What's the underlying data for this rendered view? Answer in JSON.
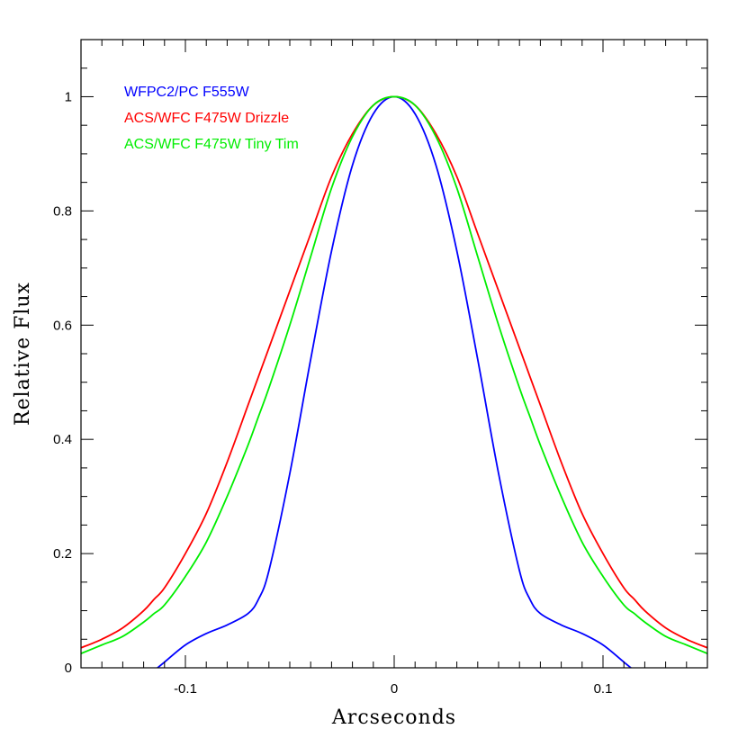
{
  "chart_data": {
    "type": "line",
    "title": "",
    "xlabel": "Arcseconds",
    "ylabel": "Relative Flux",
    "xlim": [
      -0.15,
      0.15
    ],
    "ylim": [
      0,
      1.1
    ],
    "x_ticks": [
      {
        "value": -0.1,
        "label": "-0.1"
      },
      {
        "value": 0,
        "label": "0"
      },
      {
        "value": 0.1,
        "label": "0.1"
      }
    ],
    "y_ticks": [
      {
        "value": 0,
        "label": "0"
      },
      {
        "value": 0.2,
        "label": "0.2"
      },
      {
        "value": 0.4,
        "label": "0.4"
      },
      {
        "value": 0.6,
        "label": "0.6"
      },
      {
        "value": 0.8,
        "label": "0.8"
      },
      {
        "value": 1,
        "label": "1"
      }
    ],
    "x_minor_step": 0.01,
    "y_minor_step": 0.05,
    "grid": false,
    "legend": "top-left",
    "x": [
      -0.15,
      -0.14,
      -0.13,
      -0.12,
      -0.115,
      -0.11,
      -0.1,
      -0.09,
      -0.08,
      -0.07,
      -0.065,
      -0.06,
      -0.05,
      -0.04,
      -0.03,
      -0.02,
      -0.01,
      0,
      0.01,
      0.02,
      0.03,
      0.04,
      0.05,
      0.06,
      0.065,
      0.07,
      0.08,
      0.09,
      0.1,
      0.11,
      0.115,
      0.12,
      0.13,
      0.14,
      0.15
    ],
    "series": [
      {
        "name": "WFPC2/PC F555W",
        "color": "#0000ff",
        "values": [
          null,
          null,
          null,
          null,
          -0.005,
          0.01,
          0.04,
          0.06,
          0.075,
          0.095,
          0.12,
          0.17,
          0.34,
          0.54,
          0.73,
          0.88,
          0.97,
          1.0,
          0.97,
          0.88,
          0.73,
          0.54,
          0.34,
          0.17,
          0.12,
          0.095,
          0.075,
          0.06,
          0.04,
          0.01,
          -0.005,
          null,
          null,
          null,
          null
        ]
      },
      {
        "name": "ACS/WFC F475W Drizzle",
        "color": "#ff0000",
        "values": [
          0.035,
          0.05,
          0.07,
          0.1,
          0.12,
          0.14,
          0.2,
          0.27,
          0.36,
          0.46,
          0.51,
          0.56,
          0.66,
          0.76,
          0.86,
          0.935,
          0.985,
          1.0,
          0.985,
          0.935,
          0.86,
          0.76,
          0.66,
          0.56,
          0.51,
          0.46,
          0.36,
          0.27,
          0.2,
          0.14,
          0.12,
          0.1,
          0.07,
          0.05,
          0.035
        ]
      },
      {
        "name": "ACS/WFC F475W Tiny Tim",
        "color": "#00ee00",
        "values": [
          0.025,
          0.04,
          0.055,
          0.08,
          0.095,
          0.11,
          0.16,
          0.22,
          0.3,
          0.39,
          0.44,
          0.49,
          0.6,
          0.72,
          0.84,
          0.93,
          0.985,
          1.0,
          0.985,
          0.93,
          0.84,
          0.72,
          0.6,
          0.49,
          0.44,
          0.39,
          0.3,
          0.22,
          0.16,
          0.11,
          0.095,
          0.08,
          0.055,
          0.04,
          0.025
        ]
      }
    ]
  }
}
